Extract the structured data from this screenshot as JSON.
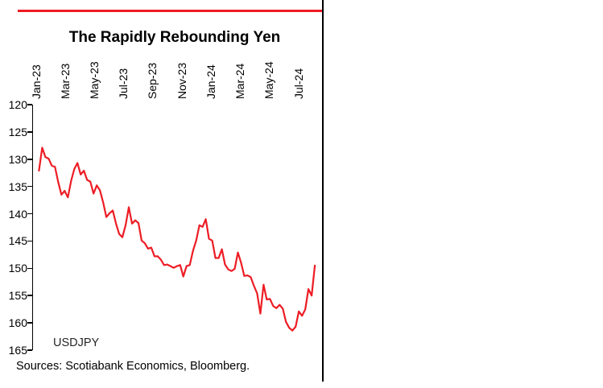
{
  "page": {
    "sources": "Sources: Scotiabank Economics, Bloomberg."
  },
  "colors": {
    "line": "#ED1C24",
    "rule": "#ED1C24",
    "axis": "#000000",
    "divider": "#000000"
  },
  "chart_data": {
    "type": "line",
    "title": "The Rapidly Rebounding Yen",
    "series_name": "USDJPY",
    "x_tick_labels": [
      "Jan-23",
      "Mar-23",
      "May-23",
      "Jul-23",
      "Sep-23",
      "Nov-23",
      "Jan-24",
      "Mar-24",
      "May-24",
      "Jul-24"
    ],
    "x_tick_positions": [
      0,
      2,
      4,
      6,
      8,
      10,
      12,
      14,
      16,
      18
    ],
    "x_unit": "months since Jan-2023, weekly points",
    "y_ticks": [
      120,
      125,
      130,
      135,
      140,
      145,
      150,
      155,
      160,
      165
    ],
    "ylim": [
      120,
      165
    ],
    "y_axis_inverted": true,
    "grid": false,
    "legend_position": "inside-bottom-left",
    "x_domain": [
      -0.25,
      19.35
    ],
    "x_start": 0.16,
    "x_step": 0.22,
    "values": [
      132.1,
      127.9,
      129.6,
      129.9,
      131.2,
      131.4,
      134.2,
      136.5,
      135.8,
      137.0,
      134.0,
      131.8,
      130.7,
      132.8,
      132.1,
      133.8,
      134.1,
      136.3,
      134.8,
      135.7,
      137.9,
      140.6,
      139.9,
      139.4,
      141.8,
      143.7,
      144.3,
      142.1,
      138.8,
      141.8,
      141.2,
      141.7,
      144.9,
      145.4,
      146.4,
      146.2,
      147.8,
      147.8,
      148.4,
      149.4,
      149.3,
      149.6,
      149.9,
      149.6,
      149.4,
      151.5,
      149.6,
      149.4,
      146.8,
      144.9,
      142.1,
      142.4,
      141.0,
      144.6,
      144.9,
      148.1,
      148.1,
      146.5,
      149.3,
      150.2,
      150.5,
      150.1,
      147.1,
      149.0,
      151.4,
      151.3,
      151.6,
      153.2,
      154.6,
      158.3,
      153.0,
      155.7,
      155.6,
      156.9,
      157.3,
      156.7,
      157.4,
      159.8,
      160.9,
      161.4,
      160.7,
      157.9,
      158.7,
      157.5,
      153.8,
      155.0,
      149.5
    ]
  }
}
